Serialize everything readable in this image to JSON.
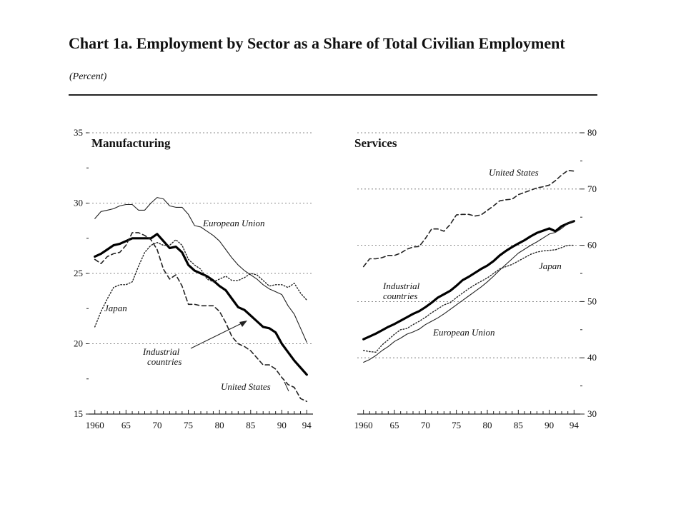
{
  "title": "Chart 1a. Employment by Sector as a Share of Total Civilian Employment",
  "subtitle": "(Percent)",
  "chart_data": [
    {
      "type": "line",
      "title": "Manufacturing",
      "ylim": [
        15,
        35
      ],
      "yticks": [
        15,
        20,
        25,
        30,
        35
      ],
      "y_axis_side": "left",
      "xlim": [
        1959,
        1995
      ],
      "xtick_labels": [
        "1960",
        "65",
        "70",
        "75",
        "80",
        "85",
        "90",
        "94"
      ],
      "xticks": [
        1960,
        1965,
        1970,
        1975,
        1980,
        1985,
        1990,
        1994
      ],
      "grid": true,
      "x": [
        1960,
        1961,
        1962,
        1963,
        1964,
        1965,
        1966,
        1967,
        1968,
        1969,
        1970,
        1971,
        1972,
        1973,
        1974,
        1975,
        1976,
        1977,
        1978,
        1979,
        1980,
        1981,
        1982,
        1983,
        1984,
        1985,
        1986,
        1987,
        1988,
        1989,
        1990,
        1991,
        1992,
        1993,
        1994
      ],
      "series": [
        {
          "name": "European Union",
          "color": "#222222",
          "style": "thin",
          "values": [
            28.9,
            29.4,
            29.5,
            29.6,
            29.8,
            29.9,
            29.9,
            29.5,
            29.5,
            30.0,
            30.4,
            30.3,
            29.8,
            29.7,
            29.7,
            29.2,
            28.4,
            28.3,
            28.0,
            27.7,
            27.3,
            26.7,
            26.1,
            25.6,
            25.2,
            24.9,
            24.6,
            24.2,
            23.9,
            23.7,
            23.5,
            22.7,
            22.1,
            21.1,
            20.1
          ]
        },
        {
          "name": "Industrial countries",
          "color": "#000000",
          "style": "thick",
          "values": [
            26.2,
            26.4,
            26.7,
            27.0,
            27.1,
            27.3,
            27.5,
            27.5,
            27.5,
            27.5,
            27.8,
            27.3,
            26.8,
            26.9,
            26.5,
            25.6,
            25.2,
            25.0,
            24.8,
            24.5,
            24.1,
            23.8,
            23.2,
            22.6,
            22.4,
            22.0,
            21.6,
            21.2,
            21.1,
            20.8,
            20.0,
            19.4,
            18.8,
            18.3,
            17.8
          ]
        },
        {
          "name": "Japan",
          "color": "#222222",
          "style": "dotted",
          "values": [
            21.2,
            22.3,
            23.2,
            24.0,
            24.2,
            24.2,
            24.4,
            25.5,
            26.5,
            27.0,
            27.2,
            27.0,
            27.0,
            27.4,
            27.0,
            26.0,
            25.6,
            25.3,
            24.6,
            24.4,
            24.6,
            24.8,
            24.5,
            24.5,
            24.7,
            25.0,
            24.9,
            24.5,
            24.1,
            24.2,
            24.2,
            24.0,
            24.3,
            23.6,
            23.1
          ]
        },
        {
          "name": "United States",
          "color": "#222222",
          "style": "dashed",
          "values": [
            26.0,
            25.7,
            26.2,
            26.4,
            26.5,
            27.0,
            27.9,
            27.9,
            27.7,
            27.4,
            26.7,
            25.3,
            24.6,
            24.9,
            24.1,
            22.8,
            22.8,
            22.7,
            22.7,
            22.7,
            22.3,
            21.5,
            20.5,
            20.0,
            19.8,
            19.5,
            19.0,
            18.5,
            18.5,
            18.2,
            17.6,
            17.1,
            16.9,
            16.1,
            15.9
          ]
        }
      ],
      "annotations": [
        "European Union",
        "Japan",
        "Industrial countries",
        "United States"
      ]
    },
    {
      "type": "line",
      "title": "Services",
      "ylim": [
        30,
        80
      ],
      "yticks": [
        30,
        40,
        50,
        60,
        70,
        80
      ],
      "y_axis_side": "right",
      "xlim": [
        1959,
        1995
      ],
      "xtick_labels": [
        "1960",
        "65",
        "70",
        "75",
        "80",
        "85",
        "90",
        "94"
      ],
      "xticks": [
        1960,
        1965,
        1970,
        1975,
        1980,
        1985,
        1990,
        1994
      ],
      "grid": true,
      "x": [
        1960,
        1961,
        1962,
        1963,
        1964,
        1965,
        1966,
        1967,
        1968,
        1969,
        1970,
        1971,
        1972,
        1973,
        1974,
        1975,
        1976,
        1977,
        1978,
        1979,
        1980,
        1981,
        1982,
        1983,
        1984,
        1985,
        1986,
        1987,
        1988,
        1989,
        1990,
        1991,
        1992,
        1993,
        1994
      ],
      "series": [
        {
          "name": "United States",
          "color": "#222222",
          "style": "dashed",
          "values": [
            56.2,
            57.6,
            57.6,
            57.8,
            58.2,
            58.2,
            58.6,
            59.3,
            59.7,
            59.8,
            61.2,
            62.9,
            62.9,
            62.5,
            63.7,
            65.4,
            65.5,
            65.5,
            65.2,
            65.4,
            66.2,
            67.0,
            67.9,
            68.1,
            68.2,
            69.0,
            69.4,
            69.8,
            70.2,
            70.4,
            70.7,
            71.5,
            72.5,
            73.3,
            73.2
          ]
        },
        {
          "name": "Industrial countries",
          "color": "#000000",
          "style": "thick",
          "values": [
            43.3,
            43.8,
            44.3,
            44.9,
            45.5,
            46.0,
            46.6,
            47.2,
            47.8,
            48.3,
            49.0,
            49.8,
            50.7,
            51.3,
            51.9,
            52.8,
            53.8,
            54.4,
            55.1,
            55.8,
            56.4,
            57.2,
            58.2,
            59.0,
            59.7,
            60.3,
            60.9,
            61.6,
            62.2,
            62.6,
            63.0,
            62.5,
            63.4,
            63.9,
            64.3
          ]
        },
        {
          "name": "Japan",
          "color": "#222222",
          "style": "dotted",
          "values": [
            41.3,
            41.1,
            41.0,
            42.3,
            43.2,
            44.2,
            45.0,
            45.2,
            45.9,
            46.5,
            47.2,
            48.0,
            48.7,
            49.4,
            49.8,
            50.7,
            51.5,
            52.3,
            53.0,
            53.6,
            54.2,
            55.0,
            55.8,
            56.2,
            56.6,
            57.2,
            57.8,
            58.4,
            58.8,
            59.0,
            59.1,
            59.2,
            59.6,
            60.0,
            60.0
          ]
        },
        {
          "name": "European Union",
          "color": "#222222",
          "style": "thin",
          "values": [
            39.2,
            39.7,
            40.4,
            41.3,
            42.0,
            42.9,
            43.5,
            44.2,
            44.6,
            45.1,
            45.9,
            46.5,
            47.1,
            47.8,
            48.6,
            49.4,
            50.2,
            51.0,
            51.8,
            52.6,
            53.5,
            54.5,
            55.6,
            56.6,
            57.6,
            58.6,
            59.3,
            60.0,
            60.6,
            61.3,
            62.0,
            62.3,
            63.0,
            63.9,
            64.4
          ]
        }
      ],
      "annotations": [
        "United States",
        "Industrial countries",
        "Japan",
        "European Union"
      ]
    }
  ]
}
